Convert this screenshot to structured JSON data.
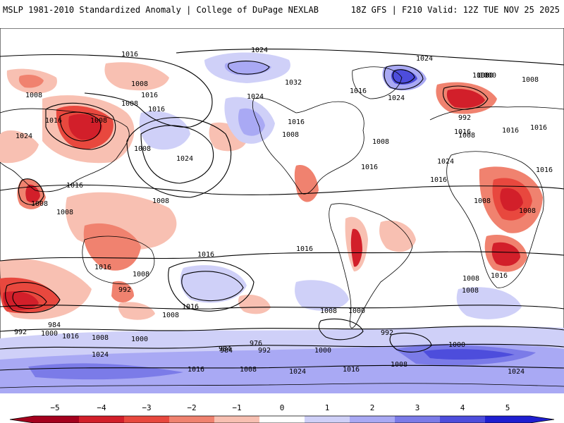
{
  "header": {
    "left_title": "MSLP 1981-2010 Standardized Anomaly | College of DuPage NEXLAB",
    "right_title": "18Z GFS | F210 Valid: 12Z TUE NOV 25 2025"
  },
  "colors": {
    "neg5": "#a4001d",
    "neg4": "#d21f2a",
    "neg3": "#e8483e",
    "neg2": "#f0826f",
    "neg1": "#f8c0b2",
    "zero": "#ffffff",
    "pos1": "#cfd0f8",
    "pos2": "#a9a9f4",
    "pos3": "#7b7be8",
    "pos4": "#4d4ddc",
    "pos5": "#1e1ed0",
    "land": "#ffffff",
    "coast": "#000000",
    "isobar": "#000000"
  },
  "colorbar": {
    "ticks": [
      "−5",
      "−4",
      "−3",
      "−2",
      "−1",
      "0",
      "1",
      "2",
      "3",
      "4",
      "5"
    ]
  },
  "isobar_labels": [
    "1016",
    "1008",
    "1008",
    "1016",
    "1008",
    "1016",
    "1024",
    "1016",
    "1008",
    "1008",
    "1016",
    "1008",
    "1008",
    "1008",
    "1016",
    "1016",
    "1008",
    "992",
    "1016",
    "1008",
    "984",
    "1016",
    "1000",
    "992",
    "984",
    "1008",
    "1024",
    "1016",
    "1008",
    "1000",
    "1024",
    "1032",
    "1024",
    "1016",
    "1024",
    "1024",
    "1016",
    "1008",
    "1008",
    "1016",
    "1008",
    "1000",
    "992",
    "984",
    "976",
    "992",
    "1000",
    "1024",
    "1016",
    "1008",
    "1016",
    "1000",
    "1008",
    "1008",
    "992",
    "1008",
    "1016",
    "1008",
    "1024",
    "1016",
    "1008",
    "1000",
    "1016",
    "1008",
    "1016",
    "1024",
    "1016",
    "1024",
    "1000",
    "1008",
    "1016"
  ]
}
